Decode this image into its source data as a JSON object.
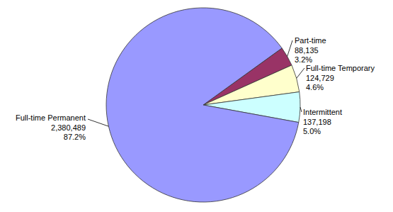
{
  "chart_data": {
    "type": "pie",
    "categories": [
      "Part-time",
      "Full-time Temporary",
      "Intermittent",
      "Full-time Permanent"
    ],
    "values": [
      88135,
      124729,
      137198,
      2380489
    ],
    "value_labels": [
      "88,135",
      "124,729",
      "137,198",
      "2,380,489"
    ],
    "percent_labels": [
      "3.2%",
      "4.6%",
      "5.0%",
      "87.2%"
    ],
    "colors": [
      "#993366",
      "#ffffcc",
      "#ccffff",
      "#9999ff"
    ],
    "data_labels": true
  }
}
